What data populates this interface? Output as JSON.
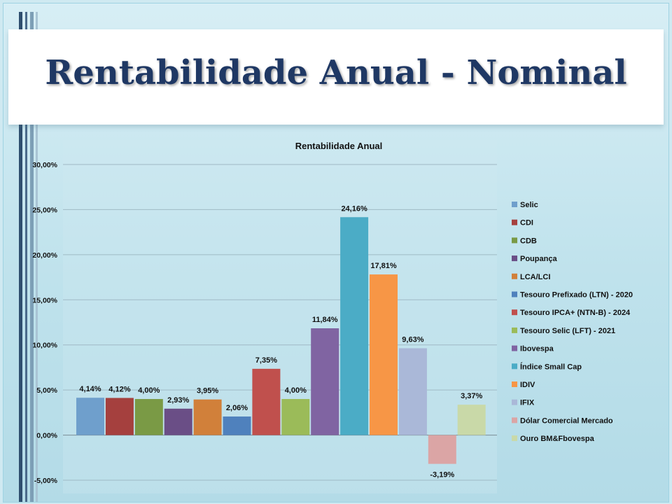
{
  "slide": {
    "title": "Rentabilidade Anual - Nominal"
  },
  "colors": {
    "title_text": "#1f3864",
    "background": "#bfe2ec"
  },
  "chart_data": {
    "type": "bar",
    "title": "Rentabilidade Anual",
    "ylim": [
      -5,
      30
    ],
    "yticks": [
      "-5,00%",
      "0,00%",
      "5,00%",
      "10,00%",
      "15,00%",
      "20,00%",
      "25,00%",
      "30,00%"
    ],
    "ytick_values": [
      -5,
      0,
      5,
      10,
      15,
      20,
      25,
      30
    ],
    "grid": true,
    "legend_position": "right",
    "series": [
      {
        "name": "Selic",
        "value": 4.14,
        "label": "4,14%",
        "color": "#6f9fcc"
      },
      {
        "name": "CDI",
        "value": 4.12,
        "label": "4,12%",
        "color": "#a5403e"
      },
      {
        "name": "CDB",
        "value": 4.0,
        "label": "4,00%",
        "color": "#7a9a45"
      },
      {
        "name": "Poupança",
        "value": 2.93,
        "label": "2,93%",
        "color": "#6a4e86"
      },
      {
        "name": "LCA/LCI",
        "value": 3.95,
        "label": "3,95%",
        "color": "#d1803a"
      },
      {
        "name": "Tesouro Prefixado (LTN) - 2020",
        "value": 2.06,
        "label": "2,06%",
        "color": "#4f81bd"
      },
      {
        "name": "Tesouro IPCA+ (NTN-B) - 2024",
        "value": 7.35,
        "label": "7,35%",
        "color": "#c0504d"
      },
      {
        "name": "Tesouro Selic (LFT) - 2021",
        "value": 4.0,
        "label": "4,00%",
        "color": "#9bbb59"
      },
      {
        "name": "Ibovespa",
        "value": 11.84,
        "label": "11,84%",
        "color": "#8064a2"
      },
      {
        "name": "Índice Small Cap",
        "value": 24.16,
        "label": "24,16%",
        "color": "#4bacc6"
      },
      {
        "name": "IDIV",
        "value": 17.81,
        "label": "17,81%",
        "color": "#f79646"
      },
      {
        "name": "IFIX",
        "value": 9.63,
        "label": "9,63%",
        "color": "#aab8d8"
      },
      {
        "name": "Dólar Comercial Mercado",
        "value": -3.19,
        "label": "-3,19%",
        "color": "#dba5a5"
      },
      {
        "name": "Ouro BM&Fbovespa",
        "value": 3.37,
        "label": "3,37%",
        "color": "#c9d9a8"
      }
    ]
  }
}
